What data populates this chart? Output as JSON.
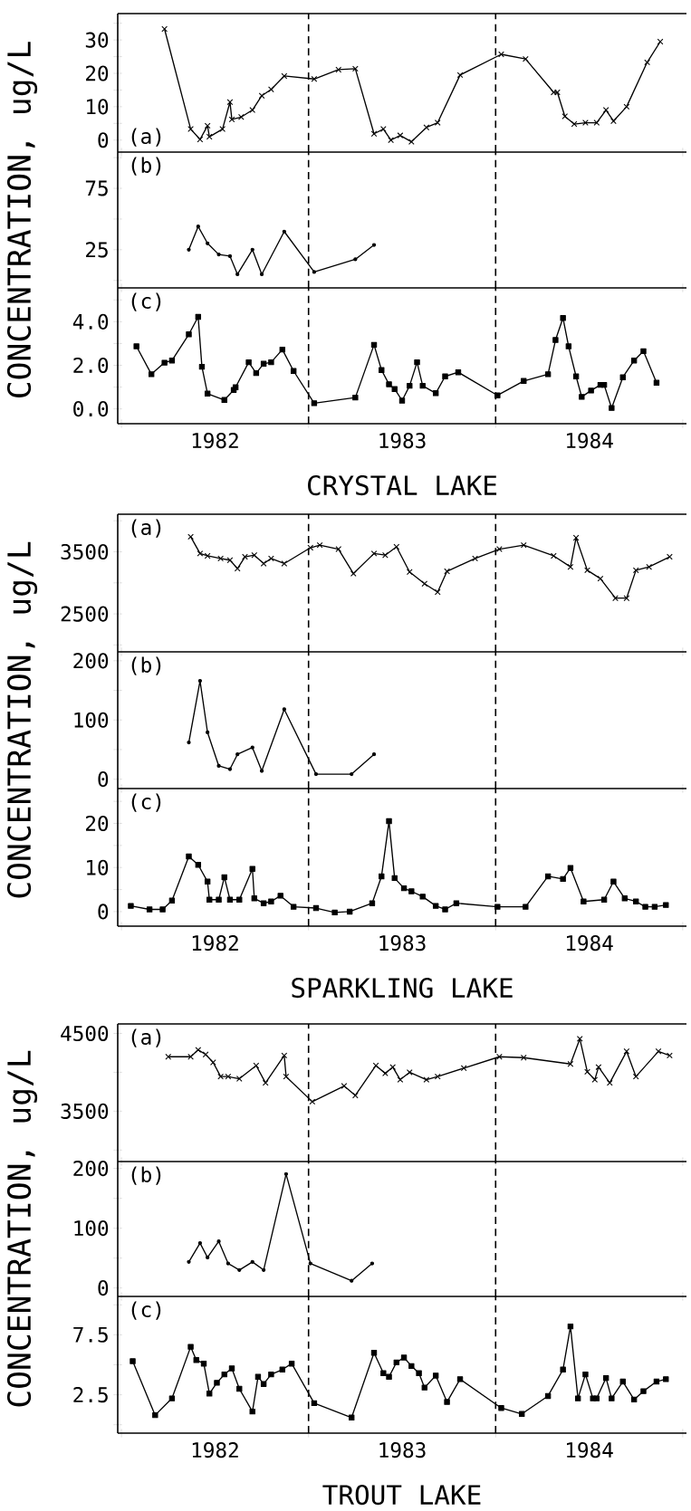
{
  "chart_data": [
    {
      "type": "line",
      "color": "#000000",
      "marker": "cross",
      "xlim": [
        1981.98,
        1985.02
      ],
      "xticks": [
        {
          "value": 1982,
          "label": null
        },
        {
          "value": 1983,
          "label": null
        },
        {
          "value": 1984,
          "label": null
        },
        {
          "value": 1985,
          "label": null
        }
      ],
      "tick_labels": "y",
      "ylim": [
        -3.6,
        37.9
      ],
      "yticks": [
        0,
        {
          "value": 5,
          "label": null
        },
        10,
        {
          "value": 15,
          "label": null
        },
        20,
        {
          "value": 25,
          "label": null
        },
        30,
        {
          "value": 35,
          "label": null
        }
      ],
      "annotations": [
        "(a)"
      ],
      "ref_lines": [
        {
          "axis": "x",
          "value": 1983,
          "line_style": "dashed"
        },
        {
          "axis": "x",
          "value": 1984,
          "line_style": "dashed"
        }
      ],
      "x": [
        1982.23,
        1982.37,
        1982.42,
        1982.46,
        1982.47,
        1982.54,
        1982.58,
        1982.59,
        1982.64,
        1982.7,
        1982.75,
        1982.8,
        1982.87,
        1983.03,
        1983.16,
        1983.25,
        1983.35,
        1983.4,
        1983.44,
        1983.49,
        1983.55,
        1983.63,
        1983.69,
        1983.81,
        1984.03,
        1984.16,
        1984.31,
        1984.33,
        1984.37,
        1984.42,
        1984.48,
        1984.54,
        1984.59,
        1984.63,
        1984.7,
        1984.81,
        1984.88
      ],
      "values": [
        33.3,
        3.3,
        0.2,
        4.3,
        1.0,
        3.3,
        11.4,
        6.2,
        6.9,
        9.0,
        13.3,
        15.2,
        19.2,
        18.3,
        21.1,
        21.4,
        1.9,
        3.3,
        0,
        1.4,
        -0.5,
        3.8,
        5.2,
        19.5,
        25.7,
        24.3,
        14.3,
        14.3,
        7.1,
        4.8,
        5.2,
        5.2,
        9.0,
        5.7,
        10.0,
        23.3,
        29.5
      ]
    },
    {
      "type": "line",
      "color": "#000000",
      "marker": "circle",
      "xlim": [
        1981.98,
        1985.02
      ],
      "xticks": [
        {
          "value": 1982,
          "label": null
        },
        {
          "value": 1983,
          "label": null
        },
        {
          "value": 1984,
          "label": null
        },
        {
          "value": 1985,
          "label": null
        }
      ],
      "tick_labels": "y",
      "ylim": [
        -6.1,
        104.5
      ],
      "yticks": [
        {
          "value": 0,
          "label": null
        },
        25,
        {
          "value": 50,
          "label": null
        },
        75,
        {
          "value": 100,
          "label": null
        }
      ],
      "ylabel": "CONCENTRATION, ug/L",
      "annotations": [
        "(b)"
      ],
      "ref_lines": [
        {
          "axis": "x",
          "value": 1983,
          "line_style": "dashed"
        },
        {
          "axis": "x",
          "value": 1984,
          "line_style": "dashed"
        }
      ],
      "x": [
        1982.36,
        1982.41,
        1982.46,
        1982.52,
        1982.58,
        1982.62,
        1982.7,
        1982.75,
        1982.87,
        1983.03,
        1983.25,
        1983.35
      ],
      "values": [
        25,
        43.9,
        30.2,
        21.1,
        19.8,
        5,
        25,
        5,
        39.8,
        6.9,
        17.2,
        28.9
      ]
    },
    {
      "type": "line",
      "color": "#000000",
      "marker": "square",
      "xlim": [
        1981.98,
        1985.02
      ],
      "xticks": [
        {
          "value": 1982,
          "label": null
        },
        {
          "value": 1982.5,
          "label": "1982"
        },
        {
          "value": 1983,
          "label": null
        },
        {
          "value": 1983.5,
          "label": "1983"
        },
        {
          "value": 1984,
          "label": null
        },
        {
          "value": 1984.5,
          "label": "1984"
        },
        {
          "value": 1985,
          "label": null
        }
      ],
      "ylim": [
        -0.68,
        5.55
      ],
      "yticks": [
        {
          "value": 0,
          "label": "0.0"
        },
        {
          "value": 1,
          "label": null
        },
        {
          "value": 2,
          "label": "2.0"
        },
        {
          "value": 3,
          "label": null
        },
        {
          "value": 4,
          "label": "4.0"
        },
        {
          "value": 5,
          "label": null
        }
      ],
      "xlabel": "CRYSTAL LAKE",
      "annotations": [
        "(c)"
      ],
      "ref_lines": [
        {
          "axis": "x",
          "value": 1983,
          "line_style": "dashed"
        },
        {
          "axis": "x",
          "value": 1984,
          "line_style": "dashed"
        }
      ],
      "x": [
        1982.08,
        1982.16,
        1982.23,
        1982.27,
        1982.36,
        1982.41,
        1982.43,
        1982.46,
        1982.55,
        1982.6,
        1982.61,
        1982.68,
        1982.72,
        1982.76,
        1982.8,
        1982.86,
        1982.92,
        1983.03,
        1983.25,
        1983.35,
        1983.39,
        1983.43,
        1983.46,
        1983.5,
        1983.54,
        1983.58,
        1983.61,
        1983.68,
        1983.73,
        1983.8,
        1984.01,
        1984.15,
        1984.28,
        1984.32,
        1984.36,
        1984.39,
        1984.43,
        1984.46,
        1984.51,
        1984.56,
        1984.58,
        1984.62,
        1984.68,
        1984.74,
        1984.79,
        1984.86
      ],
      "values": [
        2.87,
        1.59,
        2.12,
        2.22,
        3.42,
        4.22,
        1.93,
        0.7,
        0.41,
        0.87,
        0.99,
        2.14,
        1.64,
        2.07,
        2.14,
        2.72,
        1.74,
        0.26,
        0.52,
        2.94,
        1.78,
        1.13,
        0.91,
        0.38,
        1.06,
        2.14,
        1.06,
        0.72,
        1.49,
        1.68,
        0.62,
        1.28,
        1.59,
        3.16,
        4.17,
        2.87,
        1.49,
        0.55,
        0.84,
        1.1,
        1.1,
        0.04,
        1.45,
        2.22,
        2.65,
        1.2
      ]
    },
    {
      "type": "line",
      "color": "#000000",
      "marker": "cross",
      "xlim": [
        1981.98,
        1985.02
      ],
      "xticks": [
        {
          "value": 1982,
          "label": null
        },
        {
          "value": 1983,
          "label": null
        },
        {
          "value": 1984,
          "label": null
        },
        {
          "value": 1985,
          "label": null
        }
      ],
      "tick_labels": "y",
      "ylim": [
        1889,
        4105
      ],
      "yticks": [
        {
          "value": 2000,
          "label": null
        },
        2500,
        {
          "value": 3000,
          "label": null
        },
        3500,
        {
          "value": 4000,
          "label": null
        }
      ],
      "annotations": [
        "(a)"
      ],
      "ref_lines": [
        {
          "axis": "x",
          "value": 1983,
          "line_style": "dashed"
        },
        {
          "axis": "x",
          "value": 1984,
          "line_style": "dashed"
        }
      ],
      "x": [
        1982.37,
        1982.42,
        1982.46,
        1982.53,
        1982.58,
        1982.62,
        1982.66,
        1982.71,
        1982.76,
        1982.8,
        1982.87,
        1983.01,
        1983.06,
        1983.16,
        1983.24,
        1983.35,
        1983.41,
        1983.47,
        1983.54,
        1983.62,
        1983.69,
        1983.74,
        1983.89,
        1984.02,
        1984.15,
        1984.31,
        1984.4,
        1984.43,
        1984.49,
        1984.56,
        1984.64,
        1984.7,
        1984.75,
        1984.82,
        1984.93
      ],
      "values": [
        3743,
        3473,
        3435,
        3392,
        3365,
        3230,
        3419,
        3446,
        3311,
        3392,
        3311,
        3565,
        3608,
        3543,
        3149,
        3473,
        3446,
        3581,
        3176,
        2987,
        2851,
        3186,
        3392,
        3543,
        3608,
        3435,
        3257,
        3727,
        3203,
        3068,
        2754,
        2754,
        3203,
        3257,
        3419
      ]
    },
    {
      "type": "line",
      "color": "#000000",
      "marker": "circle",
      "xlim": [
        1981.98,
        1985.02
      ],
      "xticks": [
        {
          "value": 1982,
          "label": null
        },
        {
          "value": 1983,
          "label": null
        },
        {
          "value": 1984,
          "label": null
        },
        {
          "value": 1985,
          "label": null
        }
      ],
      "tick_labels": "y",
      "ylim": [
        -15.8,
        215
      ],
      "yticks": [
        0,
        {
          "value": 50,
          "label": null
        },
        100,
        {
          "value": 150,
          "label": null
        },
        200
      ],
      "ylabel": "CONCENTRATION, ug/L",
      "annotations": [
        "(b)"
      ],
      "ref_lines": [
        {
          "axis": "x",
          "value": 1983,
          "line_style": "dashed"
        },
        {
          "axis": "x",
          "value": 1984,
          "line_style": "dashed"
        }
      ],
      "x": [
        1982.36,
        1982.42,
        1982.46,
        1982.52,
        1982.58,
        1982.62,
        1982.7,
        1982.75,
        1982.87,
        1983.04,
        1983.23,
        1983.35
      ],
      "values": [
        62,
        166,
        79,
        22.5,
        17,
        42,
        53.5,
        14,
        118,
        8.5,
        8.5,
        42
      ]
    },
    {
      "type": "line",
      "color": "#000000",
      "marker": "square",
      "xlim": [
        1981.98,
        1985.02
      ],
      "xticks": [
        {
          "value": 1982,
          "label": null
        },
        {
          "value": 1982.5,
          "label": "1982"
        },
        {
          "value": 1983,
          "label": null
        },
        {
          "value": 1983.5,
          "label": "1983"
        },
        {
          "value": 1984,
          "label": null
        },
        {
          "value": 1984.5,
          "label": "1984"
        },
        {
          "value": 1985,
          "label": null
        }
      ],
      "ylim": [
        -3.3,
        27.9
      ],
      "yticks": [
        0,
        {
          "value": 5,
          "label": null
        },
        10,
        {
          "value": 15,
          "label": null
        },
        20,
        {
          "value": 25,
          "label": null
        }
      ],
      "xlabel": "SPARKLING LAKE",
      "annotations": [
        "(c)"
      ],
      "ref_lines": [
        {
          "axis": "x",
          "value": 1983,
          "line_style": "dashed"
        },
        {
          "axis": "x",
          "value": 1984,
          "line_style": "dashed"
        }
      ],
      "x": [
        1982.05,
        1982.15,
        1982.22,
        1982.27,
        1982.36,
        1982.41,
        1982.46,
        1982.47,
        1982.52,
        1982.55,
        1982.58,
        1982.63,
        1982.7,
        1982.71,
        1982.76,
        1982.8,
        1982.85,
        1982.92,
        1983.04,
        1983.14,
        1983.22,
        1983.34,
        1983.39,
        1983.43,
        1983.46,
        1983.51,
        1983.55,
        1983.61,
        1983.68,
        1983.73,
        1983.79,
        1984.01,
        1984.16,
        1984.28,
        1984.36,
        1984.4,
        1984.47,
        1984.58,
        1984.63,
        1984.69,
        1984.75,
        1984.8,
        1984.85,
        1984.91
      ],
      "values": [
        1.3,
        0.5,
        0.5,
        2.5,
        12.5,
        10.6,
        6.8,
        2.7,
        2.7,
        7.8,
        2.7,
        2.7,
        9.7,
        3.0,
        1.9,
        2.3,
        3.6,
        1.1,
        0.8,
        -0.2,
        0,
        1.9,
        8.0,
        20.5,
        7.6,
        5.3,
        4.6,
        3.4,
        1.3,
        0.5,
        1.9,
        1.1,
        1.1,
        8.0,
        7.4,
        9.9,
        2.3,
        2.7,
        6.8,
        3.0,
        2.3,
        1.1,
        1.1,
        1.5
      ]
    },
    {
      "type": "line",
      "color": "#000000",
      "marker": "cross",
      "xlim": [
        1981.98,
        1985.02
      ],
      "xticks": [
        {
          "value": 1982,
          "label": null
        },
        {
          "value": 1983,
          "label": null
        },
        {
          "value": 1984,
          "label": null
        },
        {
          "value": 1985,
          "label": null
        }
      ],
      "tick_labels": "y",
      "ylim": [
        2852,
        4622
      ],
      "yticks": [
        {
          "value": 3000,
          "label": null
        },
        3500,
        {
          "value": 4000,
          "label": null
        },
        4500
      ],
      "annotations": [
        "(a)"
      ],
      "ref_lines": [
        {
          "axis": "x",
          "value": 1983,
          "line_style": "dashed"
        },
        {
          "axis": "x",
          "value": 1984,
          "line_style": "dashed"
        }
      ],
      "x": [
        1982.25,
        1982.37,
        1982.41,
        1982.45,
        1982.49,
        1982.53,
        1982.57,
        1982.63,
        1982.72,
        1982.77,
        1982.87,
        1982.88,
        1983.02,
        1983.19,
        1983.25,
        1983.36,
        1983.41,
        1983.45,
        1983.49,
        1983.54,
        1983.63,
        1983.69,
        1983.83,
        1984.02,
        1984.15,
        1984.4,
        1984.45,
        1984.49,
        1984.53,
        1984.55,
        1984.61,
        1984.7,
        1984.75,
        1984.87,
        1984.93
      ],
      "values": [
        4200,
        4200,
        4289,
        4229,
        4127,
        3945,
        3945,
        3917,
        4087,
        3864,
        4216,
        3945,
        3622,
        3824,
        3703,
        4087,
        3986,
        4067,
        3905,
        4000,
        3905,
        3945,
        4054,
        4200,
        4188,
        4107,
        4431,
        4006,
        3905,
        4067,
        3864,
        4269,
        3945,
        4269,
        4216
      ]
    },
    {
      "type": "line",
      "color": "#000000",
      "marker": "circle",
      "xlim": [
        1981.98,
        1985.02
      ],
      "xticks": [
        {
          "value": 1982,
          "label": null
        },
        {
          "value": 1983,
          "label": null
        },
        {
          "value": 1984,
          "label": null
        },
        {
          "value": 1985,
          "label": null
        }
      ],
      "tick_labels": "y",
      "ylim": [
        -14.2,
        211.5
      ],
      "yticks": [
        0,
        {
          "value": 50,
          "label": null
        },
        100,
        {
          "value": 150,
          "label": null
        },
        200
      ],
      "ylabel": "CONCENTRATION, ug/L",
      "annotations": [
        "(b)"
      ],
      "ref_lines": [
        {
          "axis": "x",
          "value": 1983,
          "line_style": "dashed"
        },
        {
          "axis": "x",
          "value": 1984,
          "line_style": "dashed"
        }
      ],
      "x": [
        1982.36,
        1982.42,
        1982.46,
        1982.52,
        1982.57,
        1982.63,
        1982.7,
        1982.76,
        1982.88,
        1983.01,
        1983.23,
        1983.34
      ],
      "values": [
        43.6,
        75,
        51,
        78,
        41,
        30,
        43.6,
        30,
        190.6,
        41,
        12,
        41
      ]
    },
    {
      "type": "line",
      "color": "#000000",
      "marker": "square",
      "xlim": [
        1981.98,
        1985.02
      ],
      "xticks": [
        {
          "value": 1982,
          "label": null
        },
        {
          "value": 1982.5,
          "label": "1982"
        },
        {
          "value": 1983,
          "label": null
        },
        {
          "value": 1983.5,
          "label": "1983"
        },
        {
          "value": 1984,
          "label": null
        },
        {
          "value": 1984.5,
          "label": "1984"
        },
        {
          "value": 1985,
          "label": null
        }
      ],
      "ylim": [
        -0.7,
        10.7
      ],
      "yticks": [
        {
          "value": 0,
          "label": null
        },
        2.5,
        {
          "value": 5,
          "label": null
        },
        7.5,
        {
          "value": 10,
          "label": null
        }
      ],
      "xlabel": "TROUT LAKE",
      "annotations": [
        "(c)"
      ],
      "ref_lines": [
        {
          "axis": "x",
          "value": 1983,
          "line_style": "dashed"
        },
        {
          "axis": "x",
          "value": 1984,
          "line_style": "dashed"
        }
      ],
      "x": [
        1982.06,
        1982.18,
        1982.27,
        1982.37,
        1982.4,
        1982.44,
        1982.47,
        1982.51,
        1982.55,
        1982.59,
        1982.63,
        1982.7,
        1982.73,
        1982.76,
        1982.8,
        1982.86,
        1982.91,
        1983.03,
        1983.23,
        1983.35,
        1983.4,
        1983.43,
        1983.47,
        1983.51,
        1983.55,
        1983.59,
        1983.62,
        1983.68,
        1983.74,
        1983.81,
        1984.03,
        1984.14,
        1984.28,
        1984.36,
        1984.4,
        1984.44,
        1984.48,
        1984.52,
        1984.54,
        1984.59,
        1984.62,
        1984.68,
        1984.74,
        1984.79,
        1984.86,
        1984.91
      ],
      "values": [
        5.3,
        0.8,
        2.2,
        6.5,
        5.4,
        5.1,
        2.6,
        3.5,
        4.2,
        4.7,
        3.0,
        1.1,
        4.0,
        3.4,
        4.2,
        4.6,
        5.1,
        1.8,
        0.6,
        6.0,
        4.3,
        4.0,
        5.2,
        5.6,
        4.9,
        4.3,
        3.1,
        4.1,
        1.9,
        3.8,
        1.4,
        0.9,
        2.4,
        4.6,
        8.2,
        2.2,
        4.2,
        2.2,
        2.2,
        3.9,
        2.2,
        3.6,
        2.1,
        2.8,
        3.6,
        3.8
      ]
    }
  ]
}
